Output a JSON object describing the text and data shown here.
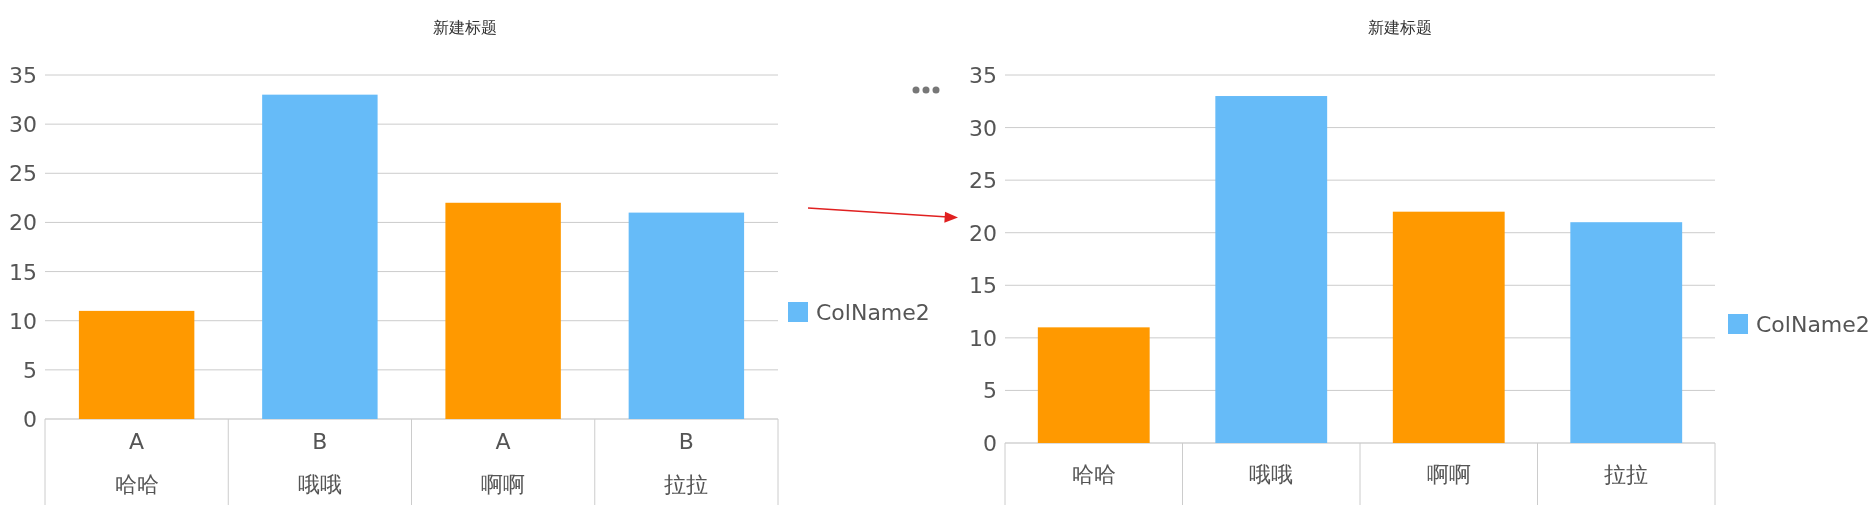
{
  "chart_data": [
    {
      "type": "bar",
      "title": "新建标题",
      "categories": [
        "哈哈",
        "哦哦",
        "啊啊",
        "拉拉"
      ],
      "series": [
        {
          "name": "ColName2",
          "color": "#66bbf8",
          "colors": [
            "#ff9900",
            "#66bbf8",
            "#ff9900",
            "#66bbf8"
          ],
          "values": [
            11,
            33,
            22,
            21
          ]
        }
      ],
      "annotations": [
        "A",
        "B",
        "A",
        "B"
      ],
      "ylim": [
        0,
        35
      ],
      "yticks": [
        0,
        5,
        10,
        15,
        20,
        25,
        30,
        35
      ],
      "grid": "y",
      "legend": "right"
    },
    {
      "type": "bar",
      "title": "新建标题",
      "categories": [
        "哈哈",
        "哦哦",
        "啊啊",
        "拉拉"
      ],
      "series": [
        {
          "name": "ColName2",
          "color": "#66bbf8",
          "colors": [
            "#ff9900",
            "#66bbf8",
            "#ff9900",
            "#66bbf8"
          ],
          "values": [
            11,
            33,
            22,
            21
          ]
        }
      ],
      "ylim": [
        0,
        35
      ],
      "yticks": [
        0,
        5,
        10,
        15,
        20,
        25,
        30,
        35
      ],
      "grid": "y",
      "legend": "right"
    }
  ]
}
